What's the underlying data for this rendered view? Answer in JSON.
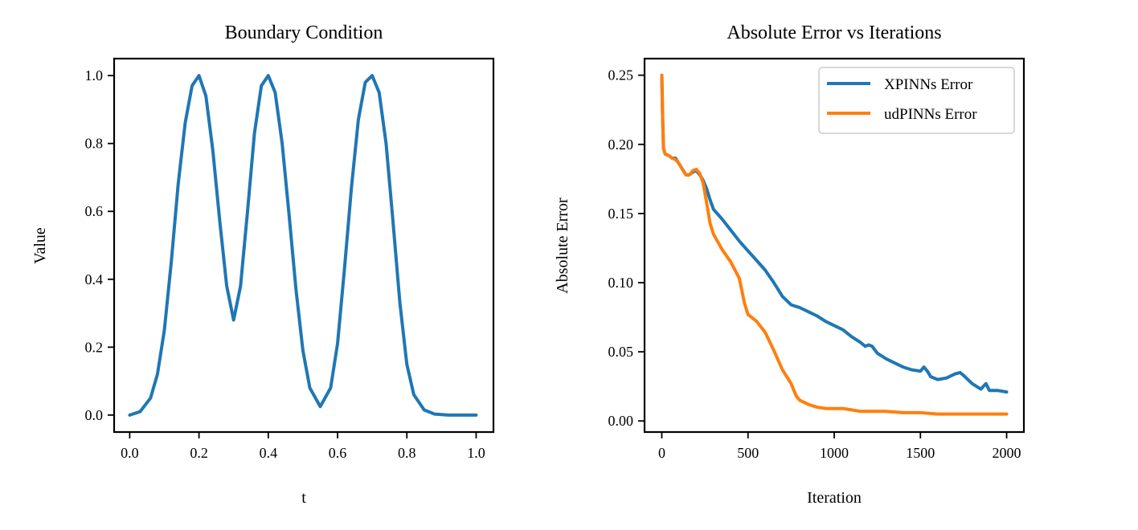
{
  "chart_data": [
    {
      "type": "line",
      "title": "Boundary Condition",
      "xlabel": "t",
      "ylabel": "Value",
      "xlim": [
        -0.045,
        1.05
      ],
      "ylim": [
        -0.05,
        1.05
      ],
      "xticks": [
        0.0,
        0.2,
        0.4,
        0.6,
        0.8,
        1.0
      ],
      "xtick_labels": [
        "0.0",
        "0.2",
        "0.4",
        "0.6",
        "0.8",
        "1.0"
      ],
      "yticks": [
        0.0,
        0.2,
        0.4,
        0.6,
        0.8,
        1.0
      ],
      "ytick_labels": [
        "0.0",
        "0.2",
        "0.4",
        "0.6",
        "0.8",
        "1.0"
      ],
      "grid": false,
      "series": [
        {
          "color": "#1f77b4",
          "x": [
            0.0,
            0.03,
            0.06,
            0.08,
            0.1,
            0.12,
            0.14,
            0.16,
            0.18,
            0.2,
            0.22,
            0.24,
            0.26,
            0.28,
            0.3,
            0.32,
            0.34,
            0.36,
            0.38,
            0.4,
            0.42,
            0.44,
            0.46,
            0.48,
            0.5,
            0.52,
            0.55,
            0.58,
            0.6,
            0.62,
            0.64,
            0.66,
            0.68,
            0.7,
            0.72,
            0.74,
            0.76,
            0.78,
            0.8,
            0.82,
            0.85,
            0.88,
            0.92,
            1.0
          ],
          "y": [
            0.0,
            0.01,
            0.05,
            0.12,
            0.25,
            0.45,
            0.68,
            0.86,
            0.97,
            1.0,
            0.94,
            0.78,
            0.57,
            0.38,
            0.28,
            0.38,
            0.6,
            0.83,
            0.97,
            1.0,
            0.95,
            0.8,
            0.59,
            0.37,
            0.19,
            0.08,
            0.025,
            0.08,
            0.21,
            0.43,
            0.67,
            0.87,
            0.98,
            1.0,
            0.95,
            0.8,
            0.57,
            0.33,
            0.15,
            0.06,
            0.015,
            0.003,
            0.0,
            0.0
          ]
        }
      ]
    },
    {
      "type": "line",
      "title": "Absolute Error vs Iterations",
      "xlabel": "Iteration",
      "ylabel": "Absolute Error",
      "xlim": [
        -100,
        2100
      ],
      "ylim": [
        -0.008,
        0.262
      ],
      "xticks": [
        0,
        500,
        1000,
        1500,
        2000
      ],
      "xtick_labels": [
        "0",
        "500",
        "1000",
        "1500",
        "2000"
      ],
      "yticks": [
        0.0,
        0.05,
        0.1,
        0.15,
        0.2,
        0.25
      ],
      "ytick_labels": [
        "0.00",
        "0.05",
        "0.10",
        "0.15",
        "0.20",
        "0.25"
      ],
      "grid": false,
      "legend_position": "top-right",
      "series": [
        {
          "name": "XPINNs Error",
          "color": "#1f77b4",
          "x": [
            0,
            5,
            10,
            20,
            40,
            60,
            80,
            100,
            120,
            140,
            160,
            180,
            200,
            220,
            240,
            260,
            280,
            300,
            350,
            400,
            450,
            500,
            550,
            600,
            650,
            700,
            750,
            800,
            850,
            900,
            950,
            1000,
            1050,
            1100,
            1150,
            1180,
            1200,
            1220,
            1250,
            1300,
            1350,
            1400,
            1450,
            1500,
            1520,
            1540,
            1560,
            1600,
            1650,
            1700,
            1730,
            1750,
            1800,
            1850,
            1880,
            1900,
            1950,
            2000
          ],
          "y": [
            0.25,
            0.22,
            0.197,
            0.193,
            0.192,
            0.19,
            0.19,
            0.186,
            0.182,
            0.178,
            0.178,
            0.18,
            0.181,
            0.178,
            0.174,
            0.168,
            0.16,
            0.153,
            0.146,
            0.138,
            0.13,
            0.123,
            0.116,
            0.109,
            0.1,
            0.09,
            0.084,
            0.082,
            0.079,
            0.076,
            0.072,
            0.069,
            0.066,
            0.061,
            0.057,
            0.054,
            0.055,
            0.054,
            0.049,
            0.045,
            0.042,
            0.039,
            0.037,
            0.036,
            0.039,
            0.036,
            0.032,
            0.03,
            0.031,
            0.034,
            0.035,
            0.033,
            0.027,
            0.023,
            0.027,
            0.022,
            0.022,
            0.021
          ]
        },
        {
          "name": "udPINNs Error",
          "color": "#ff7f0e",
          "x": [
            0,
            5,
            10,
            20,
            40,
            60,
            80,
            100,
            120,
            140,
            160,
            180,
            200,
            220,
            240,
            260,
            280,
            300,
            350,
            400,
            450,
            480,
            500,
            550,
            600,
            650,
            700,
            750,
            780,
            800,
            850,
            900,
            950,
            1000,
            1050,
            1100,
            1150,
            1200,
            1300,
            1400,
            1500,
            1600,
            1700,
            1800,
            1900,
            2000
          ],
          "y": [
            0.25,
            0.22,
            0.197,
            0.193,
            0.192,
            0.19,
            0.189,
            0.186,
            0.182,
            0.178,
            0.178,
            0.181,
            0.182,
            0.179,
            0.172,
            0.158,
            0.143,
            0.135,
            0.124,
            0.115,
            0.103,
            0.085,
            0.077,
            0.072,
            0.064,
            0.051,
            0.037,
            0.027,
            0.018,
            0.015,
            0.012,
            0.01,
            0.009,
            0.009,
            0.009,
            0.008,
            0.007,
            0.007,
            0.007,
            0.006,
            0.006,
            0.005,
            0.005,
            0.005,
            0.005,
            0.005
          ]
        }
      ]
    }
  ]
}
